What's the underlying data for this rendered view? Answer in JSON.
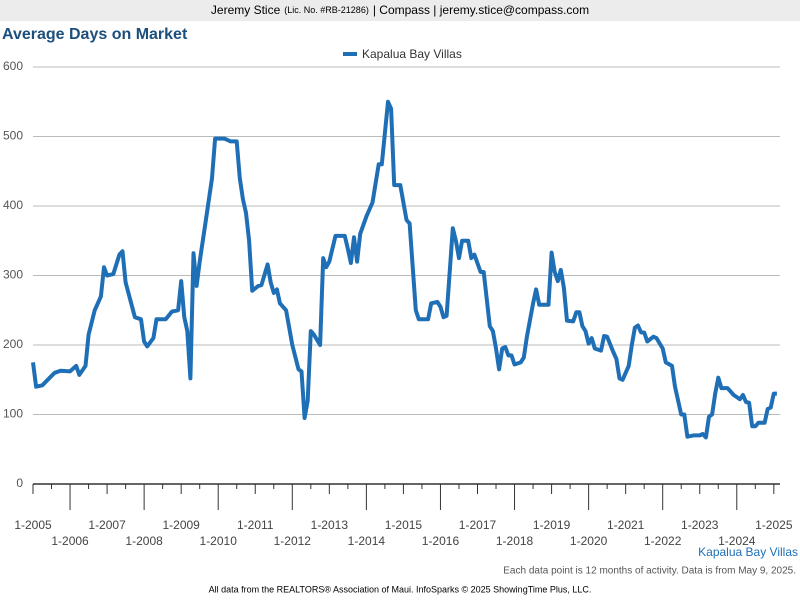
{
  "header": {
    "name": "Jeremy Stice",
    "license": "(Lic. No. #RB-21286)",
    "contact": "| Compass | jeremy.stice@compass.com"
  },
  "chart_data": {
    "type": "line",
    "title": "Average Days on Market",
    "x": [
      "1-2005",
      "2-2005",
      "4-2005",
      "8-2005",
      "10-2005",
      "1-2006",
      "3-2006",
      "4-2006",
      "6-2006",
      "7-2006",
      "9-2006",
      "11-2006",
      "12-2006",
      "1-2007",
      "3-2007",
      "5-2007",
      "6-2007",
      "7-2007",
      "10-2007",
      "12-2007",
      "1-2008",
      "2-2008",
      "4-2008",
      "5-2008",
      "8-2008",
      "10-2008",
      "12-2008",
      "1-2009",
      "2-2009",
      "3-2009",
      "4-2009",
      "5-2009",
      "6-2009",
      "7-2009",
      "9-2009",
      "11-2009",
      "12-2009",
      "3-2010",
      "5-2010",
      "7-2010",
      "8-2010",
      "9-2010",
      "10-2010",
      "11-2010",
      "12-2010",
      "2-2011",
      "3-2011",
      "5-2011",
      "6-2011",
      "7-2011",
      "8-2011",
      "9-2011",
      "11-2011",
      "12-2011",
      "1-2012",
      "3-2012",
      "4-2012",
      "5-2012",
      "6-2012",
      "7-2012",
      "8-2012",
      "10-2012",
      "11-2012",
      "12-2012",
      "1-2013",
      "3-2013",
      "6-2013",
      "7-2013",
      "8-2013",
      "9-2013",
      "10-2013",
      "11-2013",
      "1-2014",
      "3-2014",
      "5-2014",
      "6-2014",
      "8-2014",
      "9-2014",
      "10-2014",
      "12-2014",
      "2-2015",
      "3-2015",
      "5-2015",
      "6-2015",
      "9-2015",
      "10-2015",
      "12-2015",
      "1-2016",
      "2-2016",
      "3-2016",
      "5-2016",
      "6-2016",
      "7-2016",
      "8-2016",
      "10-2016",
      "11-2016",
      "12-2016",
      "2-2017",
      "3-2017",
      "5-2017",
      "6-2017",
      "7-2017",
      "8-2017",
      "9-2017",
      "10-2017",
      "11-2017",
      "12-2017",
      "1-2018",
      "3-2018",
      "4-2018",
      "5-2018",
      "7-2018",
      "8-2018",
      "9-2018",
      "12-2018",
      "1-2019",
      "2-2019",
      "3-2019",
      "4-2019",
      "5-2019",
      "6-2019",
      "8-2019",
      "9-2019",
      "10-2019",
      "11-2019",
      "12-2019",
      "1-2020",
      "2-2020",
      "3-2020",
      "5-2020",
      "6-2020",
      "7-2020",
      "9-2020",
      "10-2020",
      "11-2020",
      "12-2020",
      "2-2021",
      "3-2021",
      "4-2021",
      "5-2021",
      "6-2021",
      "7-2021",
      "8-2021",
      "10-2021",
      "11-2021",
      "1-2022",
      "2-2022",
      "4-2022",
      "5-2022",
      "6-2022",
      "7-2022",
      "8-2022",
      "9-2022",
      "11-2022",
      "1-2023",
      "2-2023",
      "3-2023",
      "4-2023",
      "5-2023",
      "6-2023",
      "7-2023",
      "8-2023",
      "10-2023",
      "12-2023",
      "1-2024",
      "2-2024",
      "3-2024",
      "4-2024",
      "5-2024",
      "6-2024",
      "7-2024",
      "8-2024",
      "10-2024",
      "11-2024",
      "12-2024",
      "1-2025",
      "2-2025"
    ],
    "series": [
      {
        "name": "Kapalua Bay Villas",
        "color": "#1f6fb6",
        "values": [
          175,
          140,
          142,
          160,
          163,
          162,
          170,
          157,
          170,
          215,
          250,
          270,
          312,
          300,
          302,
          330,
          335,
          290,
          240,
          237,
          205,
          198,
          210,
          237,
          237,
          248,
          250,
          292,
          240,
          220,
          152,
          332,
          285,
          320,
          380,
          440,
          497,
          497,
          493,
          493,
          440,
          410,
          390,
          350,
          278,
          285,
          286,
          316,
          290,
          275,
          280,
          260,
          250,
          225,
          200,
          165,
          162,
          95,
          120,
          220,
          215,
          200,
          325,
          312,
          320,
          357,
          357,
          338,
          318,
          355,
          320,
          360,
          385,
          405,
          460,
          460,
          550,
          540,
          430,
          430,
          380,
          375,
          250,
          237,
          237,
          260,
          262,
          255,
          240,
          242,
          368,
          350,
          325,
          350,
          350,
          325,
          330,
          305,
          305,
          227,
          220,
          195,
          165,
          195,
          197,
          185,
          185,
          172,
          175,
          182,
          212,
          260,
          280,
          258,
          258,
          333,
          305,
          292,
          308,
          282,
          235,
          234,
          247,
          247,
          227,
          220,
          202,
          210,
          195,
          192,
          213,
          212,
          190,
          180,
          152,
          150,
          170,
          200,
          225,
          228,
          218,
          218,
          205,
          212,
          210,
          195,
          175,
          170,
          140,
          120,
          100,
          100,
          68,
          70,
          70,
          72,
          67,
          97,
          100,
          130,
          153,
          138,
          138,
          128,
          125,
          122,
          128,
          118,
          117,
          83,
          83,
          88,
          88,
          108,
          110,
          130,
          130
        ]
      }
    ],
    "xlim": [
      "1-2005",
      "3-2025"
    ],
    "xticks": [
      "1-2005",
      "1-2006",
      "1-2007",
      "1-2008",
      "1-2009",
      "1-2010",
      "1-2011",
      "1-2012",
      "1-2013",
      "1-2014",
      "1-2015",
      "1-2016",
      "1-2017",
      "1-2018",
      "1-2019",
      "1-2020",
      "1-2021",
      "1-2022",
      "1-2023",
      "1-2024",
      "1-2025"
    ],
    "ylim": [
      0,
      600
    ],
    "yticks": [
      0,
      100,
      200,
      300,
      400,
      500,
      600
    ],
    "grid": true,
    "legend": "top",
    "note": "Each data point is 12 months of activity. Data is from May 9, 2025."
  },
  "footer": "All data from the REALTORS® Association of Maui. InfoSparks © 2025 ShowingTime Plus, LLC."
}
